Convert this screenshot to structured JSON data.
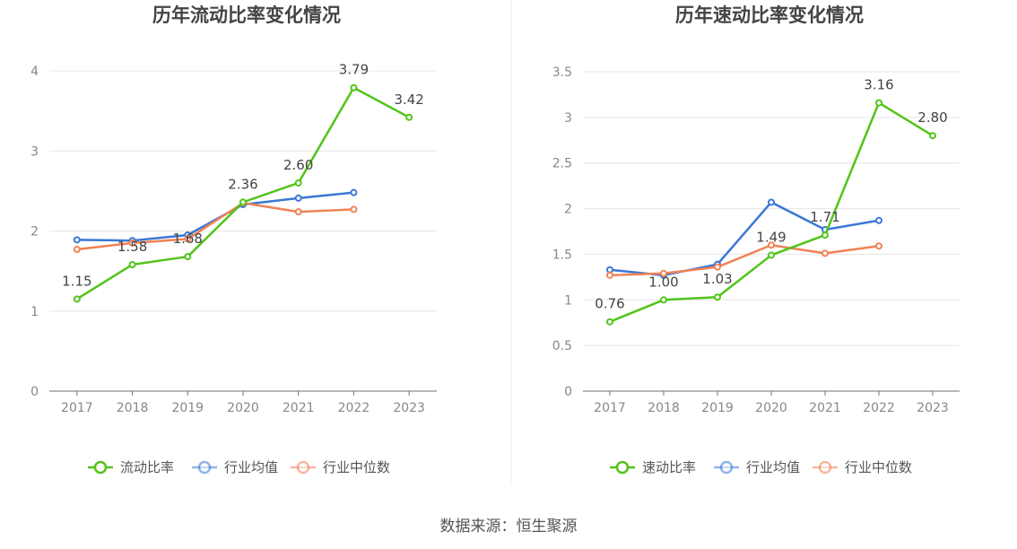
{
  "source": {
    "label": "数据来源：",
    "name": "恒生聚源"
  },
  "chart_data": [
    {
      "type": "line",
      "title": "历年流动比率变化情况",
      "categories": [
        "2017",
        "2018",
        "2019",
        "2020",
        "2021",
        "2022",
        "2023"
      ],
      "ylim": [
        0,
        4
      ],
      "yticks": [
        "0",
        "1",
        "2",
        "3",
        "4"
      ],
      "grid": true,
      "legend_position": "bottom",
      "series": [
        {
          "name": "流动比率",
          "color": "#52c41a",
          "values": [
            1.15,
            1.58,
            1.68,
            2.36,
            2.6,
            3.79,
            3.42
          ],
          "labels": [
            "1.15",
            "1.58",
            "1.68",
            "2.36",
            "2.60",
            "3.79",
            "3.42"
          ]
        },
        {
          "name": "行业均值",
          "color": "#3b77d6",
          "values": [
            1.89,
            1.88,
            1.95,
            2.33,
            2.41,
            2.48,
            null
          ]
        },
        {
          "name": "行业中位数",
          "color": "#f08255",
          "values": [
            1.77,
            1.85,
            1.9,
            2.35,
            2.24,
            2.27,
            null
          ]
        }
      ]
    },
    {
      "type": "line",
      "title": "历年速动比率变化情况",
      "categories": [
        "2017",
        "2018",
        "2019",
        "2020",
        "2021",
        "2022",
        "2023"
      ],
      "ylim": [
        0,
        3.5
      ],
      "yticks": [
        "0",
        "0.5",
        "1",
        "1.5",
        "2",
        "2.5",
        "3",
        "3.5"
      ],
      "grid": true,
      "legend_position": "bottom",
      "series": [
        {
          "name": "速动比率",
          "color": "#52c41a",
          "values": [
            0.76,
            1.0,
            1.03,
            1.49,
            1.71,
            3.16,
            2.8
          ],
          "labels": [
            "0.76",
            "1.00",
            "1.03",
            "1.49",
            "1.71",
            "3.16",
            "2.80"
          ]
        },
        {
          "name": "行业均值",
          "color": "#3b77d6",
          "values": [
            1.33,
            1.27,
            1.39,
            2.07,
            1.77,
            1.87,
            null
          ]
        },
        {
          "name": "行业中位数",
          "color": "#f08255",
          "values": [
            1.27,
            1.29,
            1.36,
            1.6,
            1.51,
            1.59,
            null
          ]
        }
      ]
    }
  ]
}
